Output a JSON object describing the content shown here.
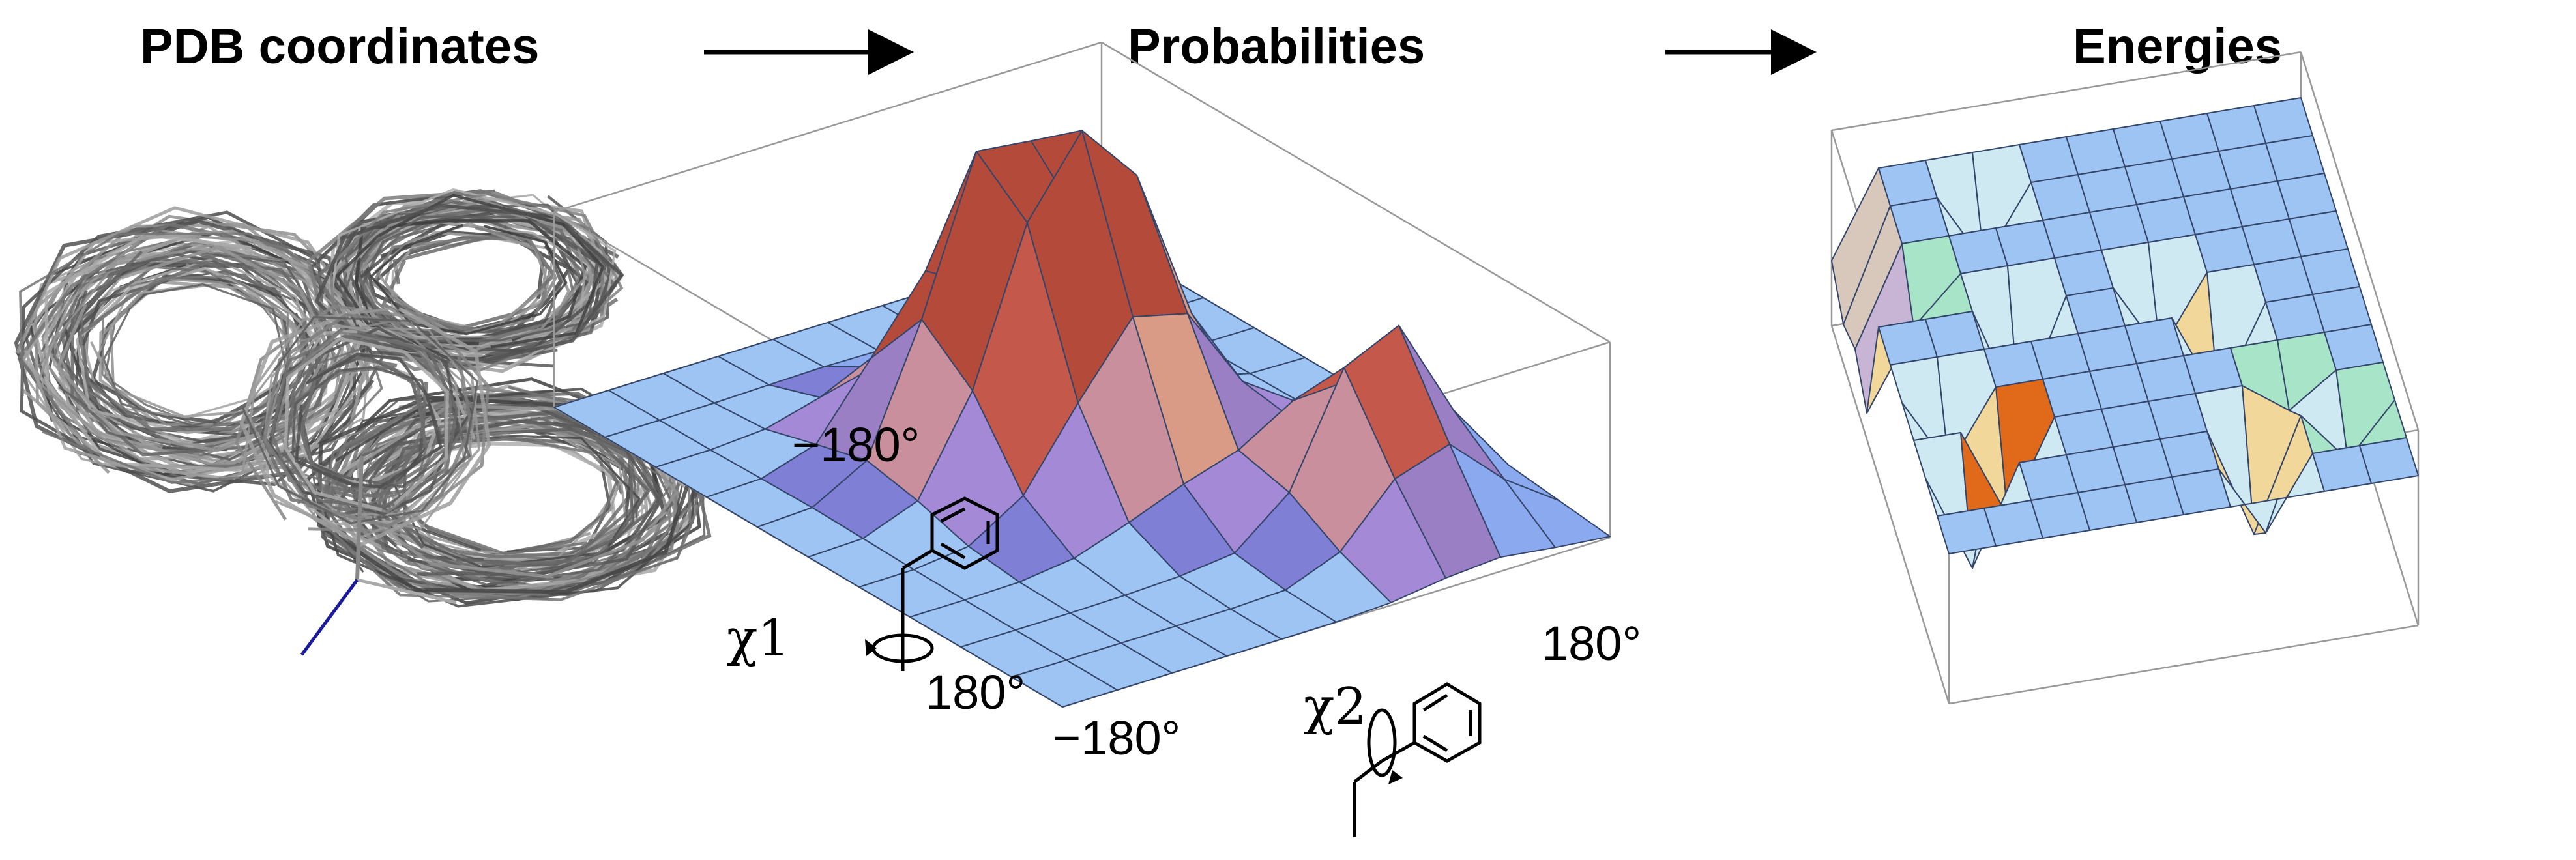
{
  "stages": [
    {
      "title": "PDB coordinates"
    },
    {
      "title": "Probabilities"
    },
    {
      "title": "Energies"
    }
  ],
  "axis_labels": {
    "chi1_min": "−180°",
    "chi1_max": "180°",
    "chi2_min": "−180°",
    "chi2_max": "180°"
  },
  "torsions": {
    "chi1": "χ1",
    "chi2": "χ2"
  },
  "colors": {
    "surface_base": "#9dc4f2",
    "grid_line": "#3a4a6a",
    "box_line": "#9a9a9a",
    "arrow": "#000000"
  }
}
